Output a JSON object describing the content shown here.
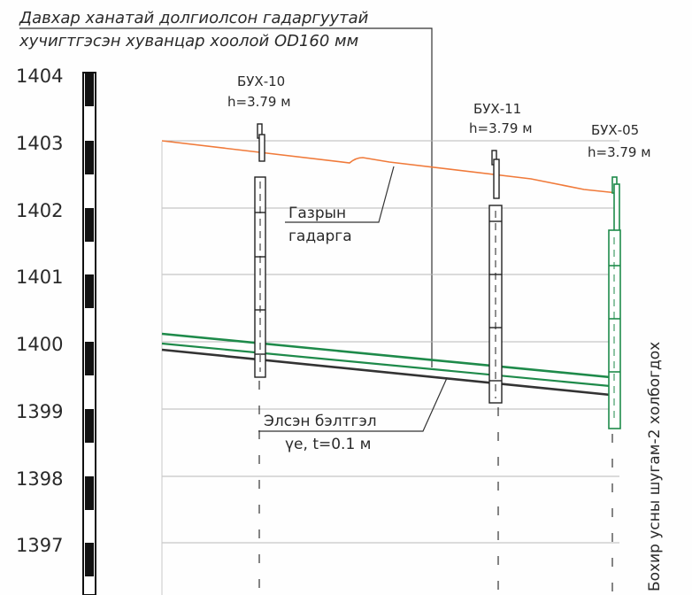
{
  "title": {
    "line1": "Давхар ханатай долгиолсон гадаргуутай",
    "line2": "хучигтгэсэн хуванцар хоолой OD160 мм"
  },
  "elevation_scale": {
    "labels": [
      "1404",
      "1403",
      "1402",
      "1401",
      "1400",
      "1399",
      "1398",
      "1397"
    ]
  },
  "wells": [
    {
      "name": "БУХ-10",
      "depth": "h=3.79 м"
    },
    {
      "name": "БУХ-11",
      "depth": "h=3.79 м"
    },
    {
      "name": "БУХ-05",
      "depth": "h=3.79 м"
    }
  ],
  "annotations": {
    "ground_line1": "Газрын",
    "ground_line2": "гадарга",
    "bedding_line1": "Элсэн бэлтгэл",
    "bedding_line2": "үе, t=0.1 м",
    "connection": "Бохир усны шугам-2 холбогдох"
  },
  "colors": {
    "ground_line": "#f07a3a",
    "pipe": "#1e8a4a",
    "bedding": "#333333"
  }
}
